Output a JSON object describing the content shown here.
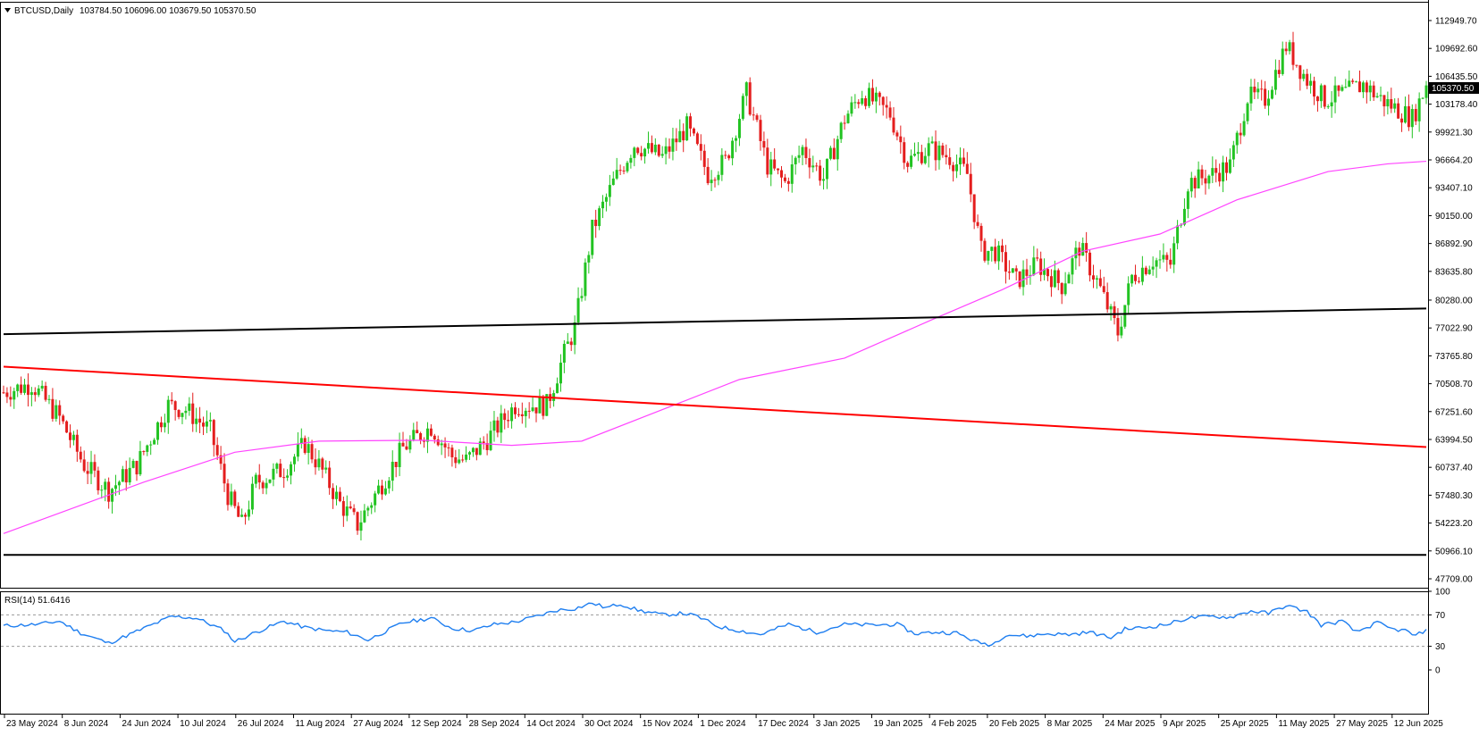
{
  "header": {
    "symbol_label": "BTCUSD,Daily",
    "ohlc_label": "103784.50 106096.00 103679.50 105370.50"
  },
  "price_badge": "105370.50",
  "colors": {
    "bull": "#22c322",
    "bear": "#e41e1e",
    "ma": "#ff44ff",
    "trendline_red": "#ff0000",
    "trendline_black": "#000000",
    "rsi_line": "#1e7ef0"
  },
  "rsi_panel": {
    "label": "RSI(14) 51.6416",
    "ticks": [
      "100",
      "70",
      "30",
      "0"
    ]
  },
  "chart_data": [
    {
      "type": "candlestick",
      "title": "BTCUSD,Daily",
      "y_ticks": [
        "112949.70",
        "109692.60",
        "106435.50",
        "103178.40",
        "99921.30",
        "96664.20",
        "93407.10",
        "90150.00",
        "86892.90",
        "83635.80",
        "80280.00",
        "77022.90",
        "73765.80",
        "70508.70",
        "67251.60",
        "63994.50",
        "60737.40",
        "57480.30",
        "54223.20",
        "50966.10",
        "47709.00"
      ],
      "ylim": [
        47709.0,
        112949.7
      ],
      "x_ticks": [
        "23 May 2024",
        "8 Jun 2024",
        "24 Jun 2024",
        "10 Jul 2024",
        "26 Jul 2024",
        "11 Aug 2024",
        "27 Aug 2024",
        "12 Sep 2024",
        "28 Sep 2024",
        "14 Oct 2024",
        "30 Oct 2024",
        "15 Nov 2024",
        "1 Dec 2024",
        "17 Dec 2024",
        "3 Jan 2025",
        "19 Jan 2025",
        "4 Feb 2025",
        "20 Feb 2025",
        "8 Mar 2025",
        "24 Mar 2025",
        "9 Apr 2025",
        "25 Apr 2025",
        "11 May 2025",
        "27 May 2025",
        "12 Jun 2025"
      ],
      "close_trajectory": [
        [
          0,
          69500
        ],
        [
          8,
          70500
        ],
        [
          16,
          66500
        ],
        [
          23,
          61000
        ],
        [
          30,
          58000
        ],
        [
          38,
          61000
        ],
        [
          47,
          68000
        ],
        [
          52,
          67500
        ],
        [
          59,
          65000
        ],
        [
          64,
          57500
        ],
        [
          68,
          54000
        ],
        [
          72,
          59000
        ],
        [
          80,
          60500
        ],
        [
          86,
          63500
        ],
        [
          90,
          61000
        ],
        [
          96,
          56500
        ],
        [
          101,
          54000
        ],
        [
          106,
          57500
        ],
        [
          114,
          63000
        ],
        [
          122,
          65500
        ],
        [
          128,
          62000
        ],
        [
          132,
          61500
        ],
        [
          138,
          64000
        ],
        [
          146,
          68000
        ],
        [
          155,
          68000
        ],
        [
          160,
          74000
        ],
        [
          163,
          77000
        ],
        [
          168,
          88500
        ],
        [
          174,
          94000
        ],
        [
          180,
          98500
        ],
        [
          188,
          97000
        ],
        [
          195,
          100500
        ],
        [
          201,
          95000
        ],
        [
          206,
          96500
        ],
        [
          212,
          104500
        ],
        [
          218,
          96000
        ],
        [
          223,
          94000
        ],
        [
          228,
          98000
        ],
        [
          234,
          94500
        ],
        [
          240,
          101500
        ],
        [
          245,
          104500
        ],
        [
          253,
          102000
        ],
        [
          258,
          96500
        ],
        [
          264,
          98000
        ],
        [
          270,
          97000
        ],
        [
          275,
          95000
        ],
        [
          279,
          86000
        ],
        [
          283,
          86000
        ],
        [
          289,
          82500
        ],
        [
          295,
          84500
        ],
        [
          302,
          82000
        ],
        [
          307,
          86500
        ],
        [
          312,
          82500
        ],
        [
          318,
          76500
        ],
        [
          322,
          83000
        ],
        [
          328,
          85000
        ],
        [
          333,
          84500
        ],
        [
          338,
          94000
        ],
        [
          345,
          95000
        ],
        [
          350,
          96000
        ],
        [
          355,
          104000
        ],
        [
          360,
          103800
        ],
        [
          366,
          110000
        ],
        [
          372,
          106000
        ],
        [
          377,
          103700
        ],
        [
          383,
          104500
        ],
        [
          388,
          105500
        ],
        [
          393,
          103800
        ],
        [
          398,
          102500
        ],
        [
          402,
          101500
        ],
        [
          406,
          105370
        ]
      ],
      "trendlines": [
        {
          "name": "",
          "color": "black",
          "start": [
            0,
            76300
          ],
          "end": [
            406,
            79300
          ]
        },
        {
          "name": "",
          "color": "red",
          "start": [
            0,
            72500
          ],
          "end": [
            406,
            63100
          ]
        },
        {
          "name": "",
          "color": "black",
          "start": [
            0,
            50500
          ],
          "end": [
            406,
            50500
          ]
        }
      ],
      "moving_average": [
        [
          0,
          53000
        ],
        [
          40,
          59000
        ],
        [
          66,
          62500
        ],
        [
          90,
          63800
        ],
        [
          120,
          63900
        ],
        [
          145,
          63300
        ],
        [
          165,
          63800
        ],
        [
          185,
          67000
        ],
        [
          210,
          71000
        ],
        [
          240,
          73500
        ],
        [
          265,
          78000
        ],
        [
          285,
          81500
        ],
        [
          308,
          86000
        ],
        [
          330,
          88000
        ],
        [
          352,
          92000
        ],
        [
          378,
          95300
        ],
        [
          395,
          96200
        ],
        [
          406,
          96500
        ]
      ]
    },
    {
      "type": "line",
      "title": "RSI(14) 51.6416",
      "ylim": [
        0,
        100
      ],
      "y_ticks": [
        100,
        70,
        30,
        0
      ],
      "levels": [
        70,
        30
      ],
      "series": [
        {
          "values": [
            [
              0,
              56
            ],
            [
              10,
              58
            ],
            [
              16,
              62
            ],
            [
              22,
              47
            ],
            [
              30,
              34
            ],
            [
              38,
              49
            ],
            [
              48,
              68
            ],
            [
              55,
              66
            ],
            [
              63,
              50
            ],
            [
              66,
              36
            ],
            [
              72,
              48
            ],
            [
              80,
              62
            ],
            [
              86,
              54
            ],
            [
              92,
              50
            ],
            [
              98,
              48
            ],
            [
              104,
              38
            ],
            [
              114,
              60
            ],
            [
              122,
              66
            ],
            [
              128,
              53
            ],
            [
              134,
              50
            ],
            [
              140,
              58
            ],
            [
              146,
              61
            ],
            [
              152,
              68
            ],
            [
              158,
              76
            ],
            [
              163,
              78
            ],
            [
              168,
              85
            ],
            [
              172,
              79
            ],
            [
              176,
              84
            ],
            [
              181,
              76
            ],
            [
              188,
              70
            ],
            [
              194,
              72
            ],
            [
              198,
              68
            ],
            [
              204,
              55
            ],
            [
              210,
              50
            ],
            [
              216,
              45
            ],
            [
              224,
              58
            ],
            [
              232,
              48
            ],
            [
              240,
              58
            ],
            [
              248,
              57
            ],
            [
              255,
              58
            ],
            [
              260,
              46
            ],
            [
              266,
              48
            ],
            [
              272,
              47
            ],
            [
              278,
              35
            ],
            [
              282,
              32
            ],
            [
              286,
              45
            ],
            [
              292,
              43
            ],
            [
              298,
              46
            ],
            [
              304,
              45
            ],
            [
              310,
              48
            ],
            [
              316,
              41
            ],
            [
              320,
              52
            ],
            [
              326,
              54
            ],
            [
              332,
              58
            ],
            [
              338,
              66
            ],
            [
              345,
              68
            ],
            [
              350,
              67
            ],
            [
              356,
              75
            ],
            [
              361,
              72
            ],
            [
              366,
              82
            ],
            [
              372,
              74
            ],
            [
              376,
              57
            ],
            [
              382,
              62
            ],
            [
              386,
              48
            ],
            [
              392,
              60
            ],
            [
              396,
              52
            ],
            [
              400,
              50
            ],
            [
              403,
              43
            ],
            [
              406,
              51.64
            ]
          ]
        }
      ]
    }
  ]
}
